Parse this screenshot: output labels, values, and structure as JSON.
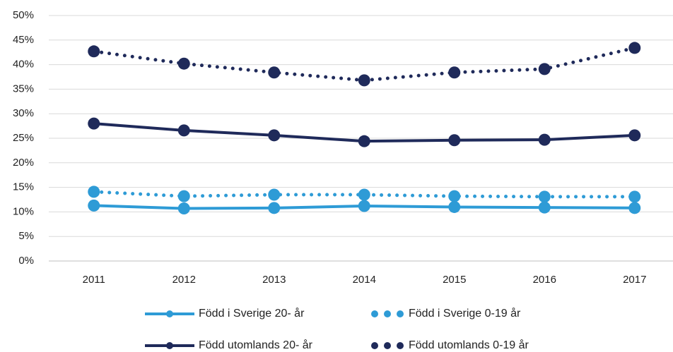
{
  "chart_data": {
    "type": "line",
    "categories": [
      "2011",
      "2012",
      "2013",
      "2014",
      "2015",
      "2016",
      "2017"
    ],
    "series": [
      {
        "name": "Född i Sverige 20- år",
        "color": "#2e9bd6",
        "style": "solid",
        "values": [
          11.3,
          10.7,
          10.8,
          11.2,
          11.0,
          10.9,
          10.8
        ]
      },
      {
        "name": "Född i Sverige 0-19 år",
        "color": "#2e9bd6",
        "style": "dotted",
        "values": [
          14.1,
          13.2,
          13.5,
          13.5,
          13.2,
          13.1,
          13.1
        ]
      },
      {
        "name": "Född utomlands 20- år",
        "color": "#1f2a5a",
        "style": "solid",
        "values": [
          28.0,
          26.6,
          25.6,
          24.4,
          24.6,
          24.7,
          25.6
        ]
      },
      {
        "name": "Född utomlands 0-19 år",
        "color": "#1f2a5a",
        "style": "dotted",
        "values": [
          42.7,
          40.2,
          38.4,
          36.8,
          38.4,
          39.1,
          43.4
        ]
      }
    ],
    "ylim": [
      0,
      50
    ],
    "yticks": [
      {
        "value": 0,
        "label": "0%"
      },
      {
        "value": 5,
        "label": "5%"
      },
      {
        "value": 10,
        "label": "10%"
      },
      {
        "value": 15,
        "label": "15%"
      },
      {
        "value": 20,
        "label": "20%"
      },
      {
        "value": 25,
        "label": "25%"
      },
      {
        "value": 30,
        "label": "30%"
      },
      {
        "value": 35,
        "label": "35%"
      },
      {
        "value": 40,
        "label": "40%"
      },
      {
        "value": 45,
        "label": "45%"
      },
      {
        "value": 50,
        "label": "50%"
      }
    ],
    "grid": true
  }
}
